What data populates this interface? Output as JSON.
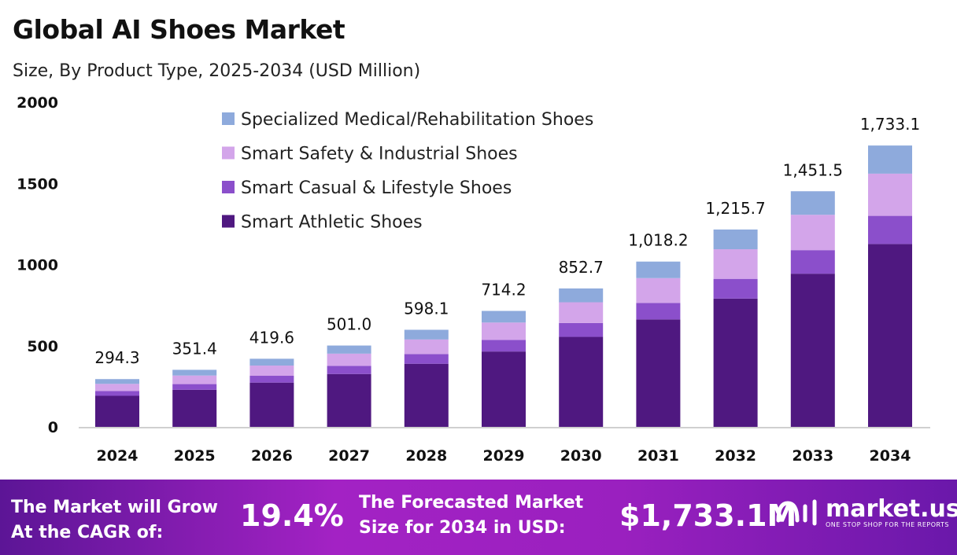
{
  "chart_data": {
    "type": "bar",
    "stacked": true,
    "title": "Global AI Shoes Market",
    "subtitle": "Size, By Product Type, 2025-2034 (USD Million)",
    "categories": [
      "2024",
      "2025",
      "2026",
      "2027",
      "2028",
      "2029",
      "2030",
      "2031",
      "2032",
      "2033",
      "2034"
    ],
    "series": [
      {
        "name": "Smart Athletic Shoes",
        "color": "#4f1880",
        "values": [
          191.3,
          228.4,
          272.7,
          325.7,
          388.8,
          464.2,
          554.3,
          661.8,
          790.2,
          943.5,
          1126.5
        ]
      },
      {
        "name": "Smart Casual & Lifestyle Shoes",
        "color": "#8b4fcb",
        "values": [
          29.4,
          35.1,
          42.0,
          50.1,
          59.8,
          71.4,
          85.3,
          101.8,
          121.6,
          145.2,
          173.3
        ]
      },
      {
        "name": "Smart Safety & Industrial Shoes",
        "color": "#d3a5ea",
        "values": [
          44.1,
          52.7,
          62.9,
          75.2,
          89.7,
          107.1,
          127.9,
          152.7,
          182.4,
          217.7,
          260.0
        ]
      },
      {
        "name": "Specialized Medical/Rehabilitation Shoes",
        "color": "#8eaadc",
        "values": [
          29.5,
          35.2,
          42.0,
          50.0,
          59.8,
          71.5,
          85.2,
          101.9,
          121.5,
          145.1,
          173.3
        ]
      }
    ],
    "totals": [
      "294.3",
      "351.4",
      "419.6",
      "501.0",
      "598.1",
      "714.2",
      "852.7",
      "1,018.2",
      "1,215.7",
      "1,451.5",
      "1,733.1"
    ],
    "yticks": [
      "0",
      "500",
      "1000",
      "1500",
      "2000"
    ],
    "ylim": [
      0,
      2000
    ],
    "grid": false,
    "legend_position": "top-left"
  },
  "footer": {
    "cagr_label": [
      "The Market will Grow",
      "At the CAGR of:"
    ],
    "cagr_value": "19.4%",
    "forecast_label": [
      "The Forecasted Market",
      "Size for 2034 in USD:"
    ],
    "forecast_value": "$1,733.1M",
    "brand": "market.us",
    "brand_tagline": "ONE STOP SHOP FOR THE REPORTS"
  }
}
